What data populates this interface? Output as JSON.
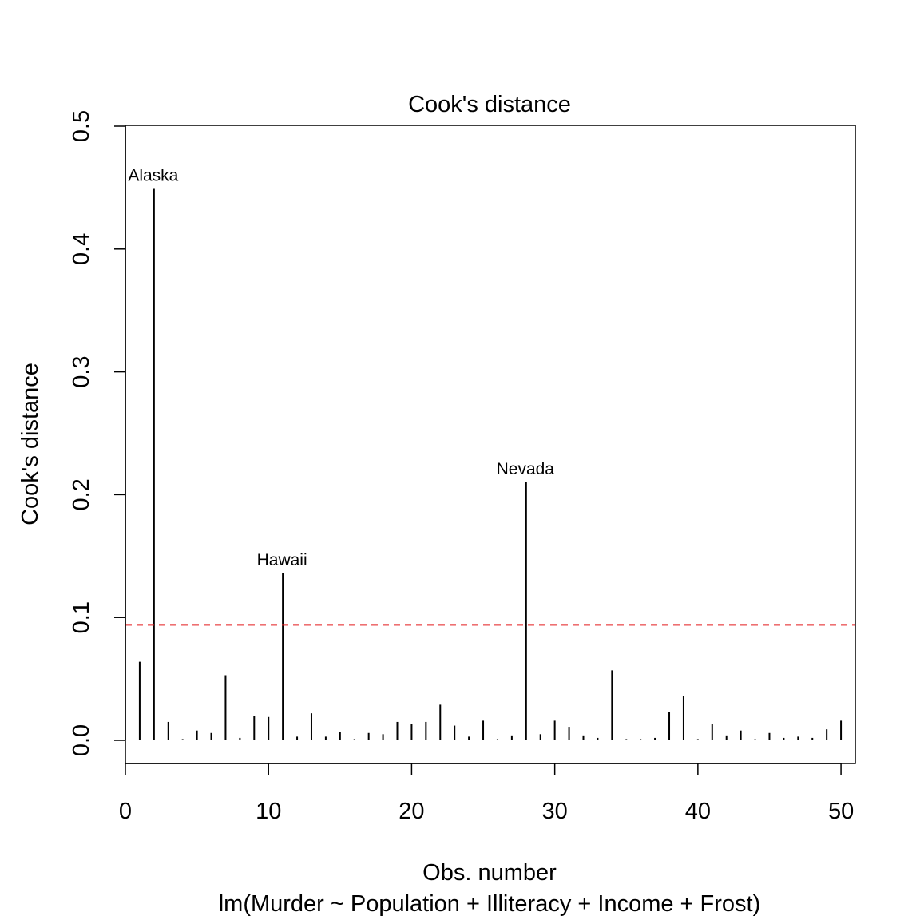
{
  "chart_data": {
    "type": "bar",
    "title": "Cook's distance",
    "xlabel": "Obs. number",
    "subtitle": "lm(Murder ~ Population + Illiteracy + Income + Frost)",
    "ylabel": "Cook's distance",
    "xlim": [
      0,
      51
    ],
    "ylim": [
      0,
      0.5
    ],
    "x_ticks": [
      "0",
      "10",
      "20",
      "30",
      "40",
      "50"
    ],
    "y_ticks": [
      "0.0",
      "0.1",
      "0.2",
      "0.3",
      "0.4",
      "0.5"
    ],
    "x_tick_values": [
      0,
      10,
      20,
      30,
      40,
      50
    ],
    "y_tick_values": [
      0,
      0.1,
      0.2,
      0.3,
      0.4,
      0.5
    ],
    "grid": false,
    "x": [
      1,
      2,
      3,
      4,
      5,
      6,
      7,
      8,
      9,
      10,
      11,
      12,
      13,
      14,
      15,
      16,
      17,
      18,
      19,
      20,
      21,
      22,
      23,
      24,
      25,
      26,
      27,
      28,
      29,
      30,
      31,
      32,
      33,
      34,
      35,
      36,
      37,
      38,
      39,
      40,
      41,
      42,
      43,
      44,
      45,
      46,
      47,
      48,
      49,
      50
    ],
    "values": [
      0.064,
      0.449,
      0.015,
      0.001,
      0.008,
      0.006,
      0.053,
      0.002,
      0.02,
      0.019,
      0.136,
      0.003,
      0.022,
      0.003,
      0.007,
      0.001,
      0.006,
      0.005,
      0.015,
      0.013,
      0.015,
      0.029,
      0.012,
      0.003,
      0.016,
      0.001,
      0.004,
      0.21,
      0.005,
      0.016,
      0.011,
      0.004,
      0.002,
      0.057,
      0.001,
      0.001,
      0.002,
      0.023,
      0.036,
      0.001,
      0.013,
      0.004,
      0.008,
      0.001,
      0.006,
      0.002,
      0.003,
      0.002,
      0.009,
      0.016
    ],
    "threshold": {
      "value": 0.094,
      "color": "#e31a1c",
      "style": "dashed"
    },
    "point_labels": [
      {
        "x": 2,
        "label": "Alaska"
      },
      {
        "x": 11,
        "label": "Hawaii"
      },
      {
        "x": 28,
        "label": "Nevada"
      }
    ],
    "bar_color": "#000000"
  }
}
